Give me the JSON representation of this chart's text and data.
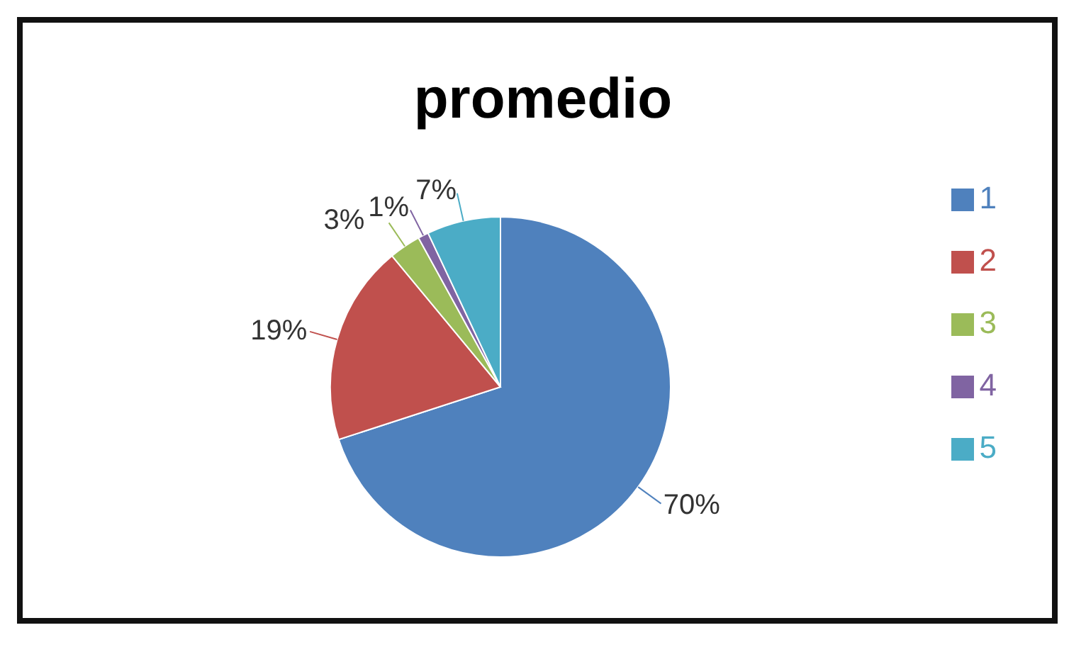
{
  "chart_data": {
    "type": "pie",
    "title": "promedio",
    "categories": [
      "1",
      "2",
      "3",
      "4",
      "5"
    ],
    "values": [
      70,
      19,
      3,
      1,
      7
    ],
    "colors": [
      "#4f81bd",
      "#c0504d",
      "#9bbb59",
      "#8064a2",
      "#4bacc6"
    ],
    "value_labels": [
      "70%",
      "19%",
      "3%",
      "1%",
      "7%"
    ],
    "legend": "right"
  }
}
